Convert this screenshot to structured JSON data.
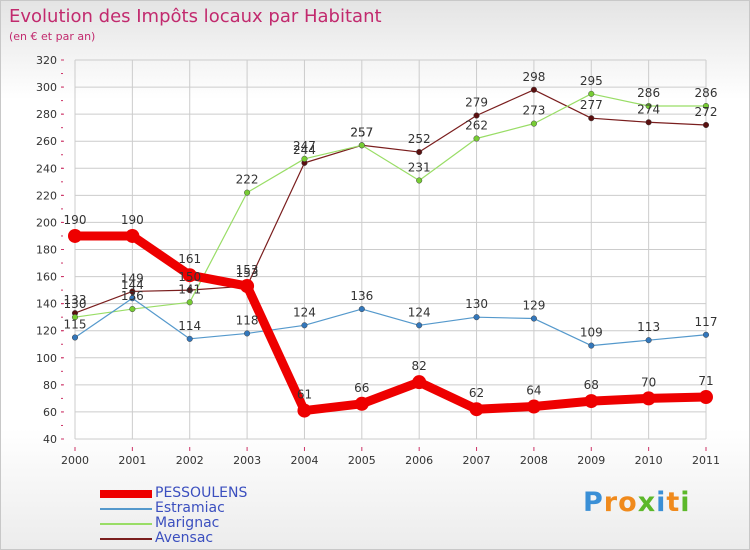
{
  "header": {
    "title": "Evolution des Impôts locaux par Habitant",
    "subtitle": "(en € et par an)"
  },
  "colors": {
    "title": "#c22a6e",
    "grid": "#cccccc",
    "axis_text": "#333333",
    "legend_text": "#3b4fbf"
  },
  "logo": {
    "text": "Proxiti",
    "letters": [
      {
        "ch": "P",
        "color": "#3a8fd6"
      },
      {
        "ch": "r",
        "color": "#f08a1c"
      },
      {
        "ch": "o",
        "color": "#f08a1c"
      },
      {
        "ch": "x",
        "color": "#5cb82a"
      },
      {
        "ch": "i",
        "color": "#3a8fd6"
      },
      {
        "ch": "t",
        "color": "#f08a1c"
      },
      {
        "ch": "i",
        "color": "#5cb82a"
      }
    ]
  },
  "chart_data": {
    "type": "line",
    "title": "Evolution des Impôts locaux par Habitant",
    "subtitle": "(en € et par an)",
    "xlabel": "",
    "ylabel": "",
    "categories": [
      "2000",
      "2001",
      "2002",
      "2003",
      "2004",
      "2005",
      "2006",
      "2007",
      "2008",
      "2009",
      "2010",
      "2011"
    ],
    "ylim": [
      40,
      320
    ],
    "yticks": [
      40,
      60,
      80,
      100,
      120,
      140,
      160,
      180,
      200,
      220,
      240,
      260,
      280,
      300,
      320
    ],
    "grid": true,
    "legend_position": "bottom-left",
    "series": [
      {
        "name": "Avensac",
        "color": "#7a1e1e",
        "marker": "#5a1010",
        "width": 1.2,
        "r": 2.8,
        "values": [
          133,
          149,
          150,
          153,
          244,
          257,
          252,
          279,
          298,
          277,
          274,
          272
        ]
      },
      {
        "name": "Marignac",
        "color": "#99dd66",
        "marker": "#77cc33",
        "width": 1.2,
        "r": 2.8,
        "values": [
          130,
          136,
          141,
          222,
          247,
          257,
          231,
          262,
          273,
          295,
          286,
          286
        ]
      },
      {
        "name": "Estramiac",
        "color": "#5599cc",
        "marker": "#3377bb",
        "width": 1.2,
        "r": 2.8,
        "values": [
          115,
          144,
          114,
          118,
          124,
          136,
          124,
          130,
          129,
          109,
          113,
          117
        ]
      },
      {
        "name": "PESSOULENS",
        "color": "#ee0000",
        "marker": "#ee0000",
        "width": 9,
        "r": 7,
        "values": [
          190,
          190,
          161,
          153,
          61,
          66,
          82,
          62,
          64,
          68,
          70,
          71
        ]
      }
    ],
    "legend_order": [
      "PESSOULENS",
      "Estramiac",
      "Marignac",
      "Avensac"
    ]
  }
}
